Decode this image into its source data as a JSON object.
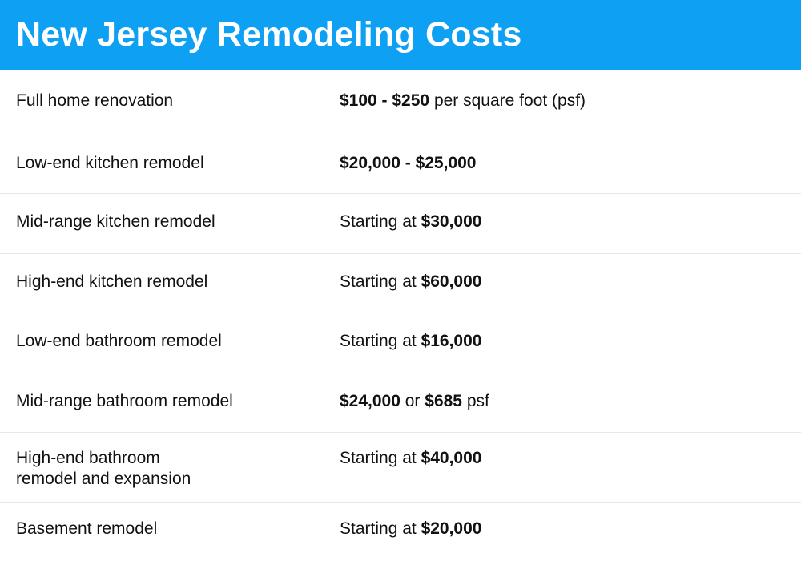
{
  "header": {
    "title": "New Jersey Remodeling Costs",
    "color": "#0ea0f2"
  },
  "rows": [
    {
      "label": "Full home renovation",
      "value": [
        {
          "text": "$100 - $250",
          "bold": true
        },
        {
          "text": " per square foot (psf)",
          "bold": false
        }
      ]
    },
    {
      "label": "Low-end kitchen remodel",
      "value": [
        {
          "text": "$20,000 - $25,000",
          "bold": true
        }
      ]
    },
    {
      "label": "Mid-range kitchen remodel",
      "value": [
        {
          "text": "Starting at ",
          "bold": false
        },
        {
          "text": "$30,000",
          "bold": true
        }
      ]
    },
    {
      "label": "High-end kitchen remodel",
      "value": [
        {
          "text": "Starting at ",
          "bold": false
        },
        {
          "text": "$60,000",
          "bold": true
        }
      ]
    },
    {
      "label": "Low-end bathroom remodel",
      "value": [
        {
          "text": "Starting at ",
          "bold": false
        },
        {
          "text": "$16,000",
          "bold": true
        }
      ]
    },
    {
      "label": "Mid-range bathroom remodel",
      "value": [
        {
          "text": "$24,000",
          "bold": true
        },
        {
          "text": " or ",
          "bold": false
        },
        {
          "text": "$685",
          "bold": true
        },
        {
          "text": " psf",
          "bold": false
        }
      ]
    },
    {
      "label_lines": [
        "High-end bathroom",
        "remodel and expansion"
      ],
      "value": [
        {
          "text": "Starting at ",
          "bold": false
        },
        {
          "text": "$40,000",
          "bold": true
        }
      ]
    },
    {
      "label": "Basement remodel",
      "value": [
        {
          "text": "Starting at ",
          "bold": false
        },
        {
          "text": "$20,000",
          "bold": true
        }
      ]
    }
  ]
}
